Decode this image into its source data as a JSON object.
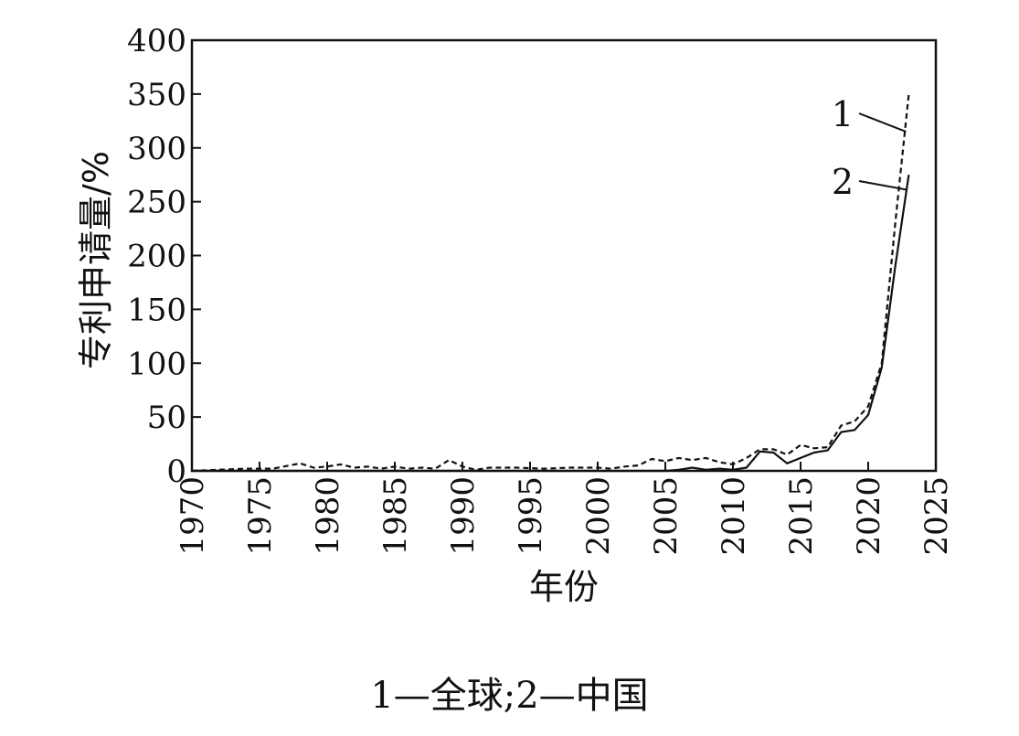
{
  "chart_data": {
    "type": "line",
    "xlabel": "年份",
    "ylabel": "专利申请量/%",
    "xlim": [
      1970,
      2025
    ],
    "ylim": [
      0,
      400
    ],
    "xticks": [
      1970,
      1975,
      1980,
      1985,
      1990,
      1995,
      2000,
      2005,
      2010,
      2015,
      2020,
      2025
    ],
    "yticks": [
      0,
      50,
      100,
      150,
      200,
      250,
      300,
      350,
      400
    ],
    "grid": false,
    "caption": "1—全球;2—中国",
    "series": [
      {
        "name": "1",
        "style": "dashed",
        "x": [
          1970,
          1972,
          1974,
          1976,
          1978,
          1979,
          1980,
          1981,
          1982,
          1983,
          1984,
          1985,
          1986,
          1987,
          1988,
          1989,
          1990,
          1991,
          1992,
          1994,
          1996,
          1998,
          2000,
          2001,
          2002,
          2003,
          2004,
          2005,
          2006,
          2007,
          2008,
          2009,
          2010,
          2011,
          2012,
          2013,
          2014,
          2015,
          2016,
          2017,
          2018,
          2019,
          2020,
          2021,
          2022,
          2023
        ],
        "y": [
          0,
          1,
          2,
          2,
          7,
          3,
          4,
          6,
          3,
          4,
          2,
          4,
          2,
          3,
          2,
          10,
          4,
          1,
          3,
          3,
          2,
          3,
          3,
          2,
          4,
          5,
          11,
          9,
          12,
          10,
          12,
          8,
          6,
          12,
          20,
          20,
          15,
          24,
          21,
          22,
          42,
          46,
          60,
          100,
          230,
          350
        ]
      },
      {
        "name": "2",
        "style": "solid",
        "x": [
          1970,
          1980,
          1990,
          2000,
          2005,
          2006,
          2007,
          2008,
          2009,
          2010,
          2011,
          2012,
          2013,
          2014,
          2015,
          2016,
          2017,
          2018,
          2019,
          2020,
          2021,
          2022,
          2023
        ],
        "y": [
          0,
          0,
          0,
          0,
          0,
          1,
          3,
          1,
          2,
          1,
          3,
          18,
          17,
          7,
          12,
          17,
          19,
          36,
          38,
          52,
          96,
          190,
          275
        ]
      }
    ]
  }
}
